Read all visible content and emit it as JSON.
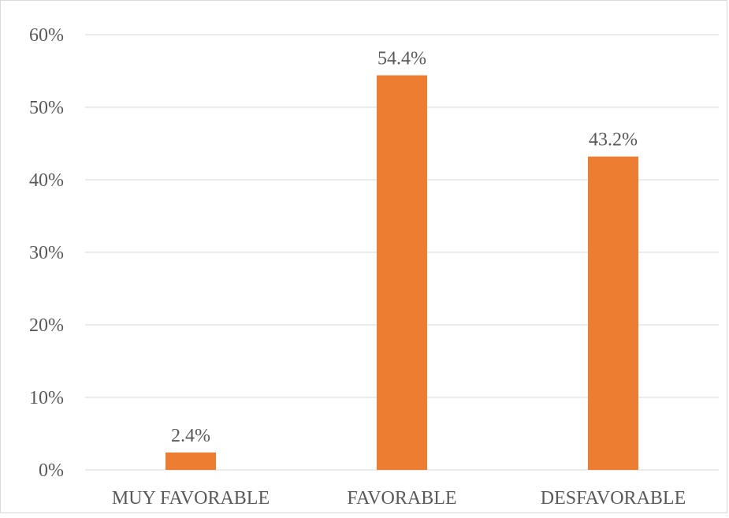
{
  "chart_data": {
    "type": "bar",
    "categories": [
      "MUY FAVORABLE",
      "FAVORABLE",
      "DESFAVORABLE"
    ],
    "values": [
      2.4,
      54.4,
      43.2
    ],
    "value_labels": [
      "2.4%",
      "54.4%",
      "43.2%"
    ],
    "ylim": [
      0,
      60
    ],
    "y_ticks": [
      0,
      10,
      20,
      30,
      40,
      50,
      60
    ],
    "y_tick_labels": [
      "0%",
      "10%",
      "20%",
      "30%",
      "40%",
      "50%",
      "60%"
    ],
    "title": "",
    "xlabel": "",
    "ylabel": "",
    "grid": true,
    "legend": "none",
    "bar_color": "#ed7d31",
    "grid_color": "#d9d9d9",
    "text_color": "#595959"
  }
}
